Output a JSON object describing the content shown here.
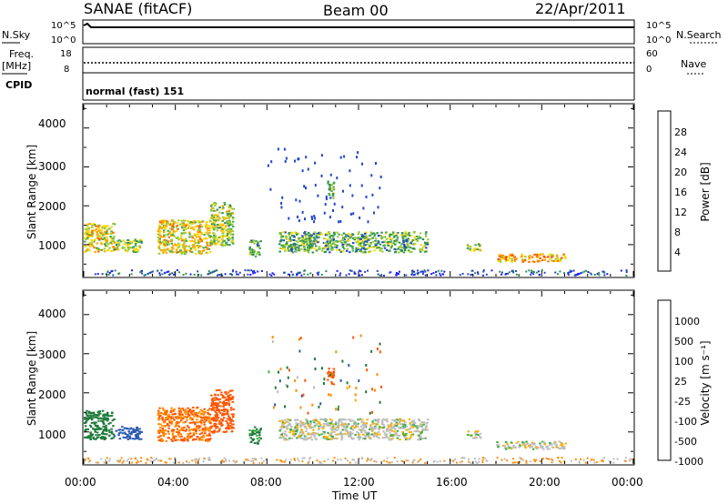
{
  "header": {
    "radar": "SANAE (fitACF)",
    "beam": "Beam 00",
    "date": "22/Apr/2011",
    "cpid_label": "CPID",
    "cpid_value": "normal (fast) 151"
  },
  "strip_labels": {
    "nsky": "N.Sky",
    "nsearch": "N.Search",
    "freq": "Freq.",
    "mhz": "[MHz]",
    "nave": "Nave"
  },
  "strip_ticks": {
    "nsky_top": "10^5",
    "nsky_bottom": "10^0",
    "nsearch_top": "10^5",
    "nsearch_bottom": "10^0",
    "freq_top": "18",
    "freq_bottom": "8",
    "nave_top": "60",
    "nave_bottom": "0"
  },
  "axes": {
    "ylabel": "Slant Range [km]",
    "xlabel": "Time UT",
    "yticks": [
      "1000",
      "2000",
      "3000",
      "4000"
    ],
    "xticks": [
      "00:00",
      "04:00",
      "08:00",
      "12:00",
      "16:00",
      "20:00",
      "00:00"
    ]
  },
  "colorbars": {
    "power": {
      "label": "Power [dB]",
      "ticks": [
        "4",
        "8",
        "12",
        "16",
        "20",
        "24",
        "28"
      ],
      "colors": [
        "#1a1aff",
        "#2244cc",
        "#2e8b57",
        "#4aa84a",
        "#9acd32",
        "#ffd700",
        "#ffa500",
        "#ff6a00",
        "#ff4500",
        "#ff0000"
      ]
    },
    "velocity": {
      "label": "Velocity [m s⁻¹]",
      "ticks": [
        "1000",
        "500",
        "100",
        "25",
        "-25",
        "-100",
        "-500",
        "-1000"
      ],
      "colors": [
        "#1f2fbf",
        "#2a5ab0",
        "#1e7a3a",
        "#3cb043",
        "#bdbdbd",
        "#bdbdbd",
        "#ffb000",
        "#ff8c00",
        "#ff5500",
        "#ff0000"
      ]
    }
  },
  "chart_data": [
    {
      "type": "heatmap",
      "name": "Power",
      "xlabel": "Time UT",
      "ylabel": "Slant Range [km]",
      "xlim": [
        0,
        24
      ],
      "ylim": [
        180,
        4600
      ],
      "unit": "dB",
      "clim": [
        0,
        30
      ],
      "regions": [
        {
          "t": [
            0.0,
            1.3
          ],
          "r": [
            820,
            1560
          ],
          "level": 9
        },
        {
          "t": [
            1.3,
            2.5
          ],
          "r": [
            830,
            1160
          ],
          "level": 8
        },
        {
          "t": [
            3.2,
            5.5
          ],
          "r": [
            780,
            1650
          ],
          "level": 10
        },
        {
          "t": [
            5.5,
            6.5
          ],
          "r": [
            1000,
            2100
          ],
          "level": 8
        },
        {
          "t": [
            7.2,
            7.7
          ],
          "r": [
            720,
            1150
          ],
          "level": 5
        },
        {
          "t": [
            8.5,
            15.0
          ],
          "r": [
            820,
            1350
          ],
          "level": 6
        },
        {
          "t": [
            10.6,
            10.9
          ],
          "r": [
            2200,
            2650
          ],
          "level": 5
        },
        {
          "t": [
            16.7,
            17.3
          ],
          "r": [
            860,
            1050
          ],
          "level": 8
        },
        {
          "t": [
            18.0,
            21.0
          ],
          "r": [
            580,
            780
          ],
          "level": 11
        }
      ]
    },
    {
      "type": "heatmap",
      "name": "Velocity",
      "xlabel": "Time UT",
      "ylabel": "Slant Range [km]",
      "xlim": [
        0,
        24
      ],
      "ylim": [
        180,
        4600
      ],
      "unit": "m s-1",
      "regions": [
        {
          "t": [
            0.0,
            1.3
          ],
          "r": [
            820,
            1560
          ],
          "v": 100
        },
        {
          "t": [
            1.3,
            2.5
          ],
          "r": [
            830,
            1160
          ],
          "v": 500
        },
        {
          "t": [
            3.2,
            5.5
          ],
          "r": [
            780,
            1650
          ],
          "v": -300
        },
        {
          "t": [
            5.5,
            6.5
          ],
          "r": [
            1000,
            2100
          ],
          "v": -400
        },
        {
          "t": [
            7.2,
            7.7
          ],
          "r": [
            720,
            1150
          ],
          "v": 80
        },
        {
          "t": [
            8.5,
            15.0
          ],
          "r": [
            820,
            1350
          ],
          "v": 0
        },
        {
          "t": [
            10.6,
            10.9
          ],
          "r": [
            2200,
            2650
          ],
          "v": -450
        },
        {
          "t": [
            16.7,
            17.3
          ],
          "r": [
            860,
            1050
          ],
          "v": 0
        },
        {
          "t": [
            18.0,
            21.0
          ],
          "r": [
            580,
            780
          ],
          "v": 0
        }
      ]
    }
  ]
}
